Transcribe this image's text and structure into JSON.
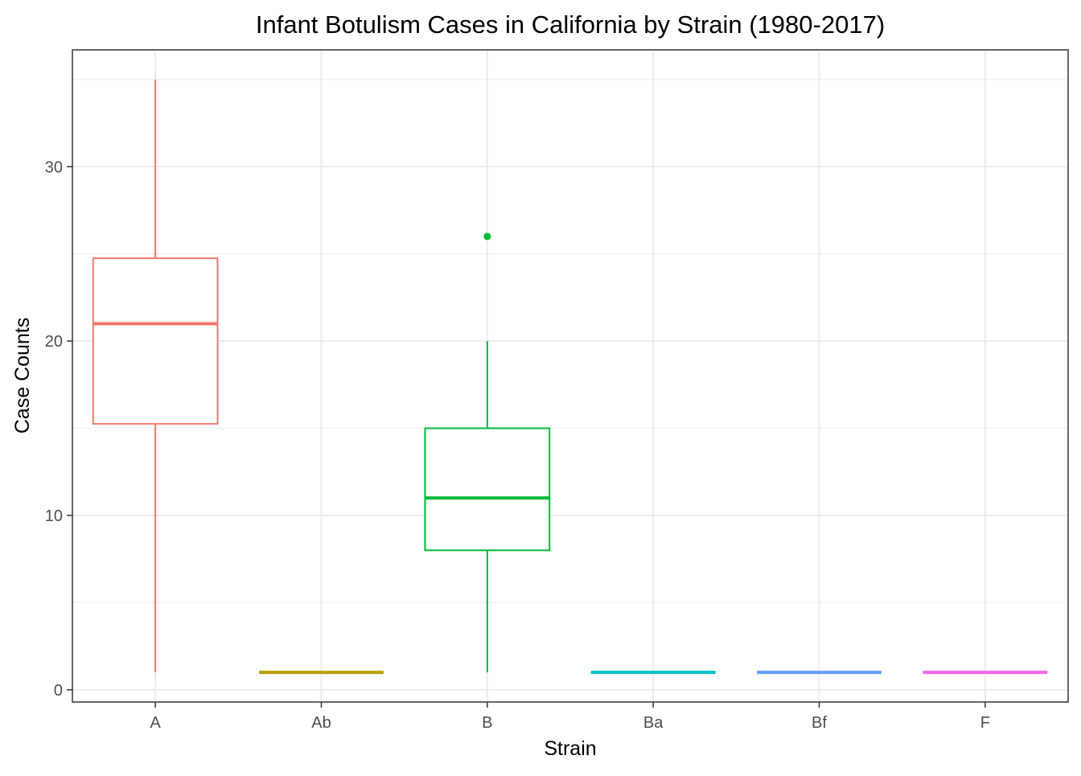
{
  "chart_data": {
    "type": "boxplot",
    "title": "Infant Botulism Cases in California by Strain (1980-2017)",
    "xlabel": "Strain",
    "ylabel": "Case Counts",
    "categories": [
      "A",
      "Ab",
      "B",
      "Ba",
      "Bf",
      "F"
    ],
    "ylim": [
      -0.7,
      36.7
    ],
    "yticks": [
      0,
      10,
      20,
      30
    ],
    "grid": true,
    "legend": "none",
    "boxes": [
      {
        "category": "A",
        "color": "#F8766D",
        "min": 1,
        "q1": 15.25,
        "median": 21,
        "q3": 24.75,
        "max": 35,
        "outliers": []
      },
      {
        "category": "Ab",
        "color": "#B79F00",
        "min": 1,
        "q1": 1,
        "median": 1,
        "q3": 1,
        "max": 1,
        "outliers": []
      },
      {
        "category": "B",
        "color": "#00BA38",
        "min": 1,
        "q1": 8,
        "median": 11,
        "q3": 15,
        "max": 20,
        "outliers": [
          26
        ]
      },
      {
        "category": "Ba",
        "color": "#00BFC4",
        "min": 1,
        "q1": 1,
        "median": 1,
        "q3": 1,
        "max": 1,
        "outliers": []
      },
      {
        "category": "Bf",
        "color": "#619CFF",
        "min": 1,
        "q1": 1,
        "median": 1,
        "q3": 1,
        "max": 1,
        "outliers": []
      },
      {
        "category": "F",
        "color": "#F564E3",
        "min": 1,
        "q1": 1,
        "median": 1,
        "q3": 1,
        "max": 1,
        "outliers": []
      }
    ]
  }
}
